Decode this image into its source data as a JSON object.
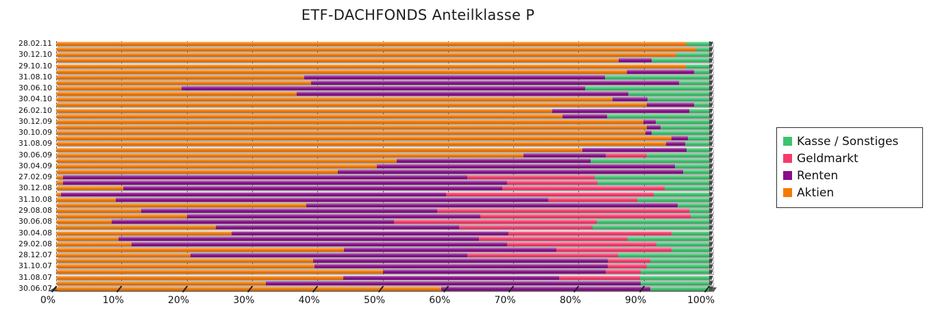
{
  "title": "ETF-DACHFONDS Anteilklasse P",
  "legend": {
    "items": [
      {
        "label": "Kasse / Sonstiges",
        "color": "#3cc46d"
      },
      {
        "label": "Geldmarkt",
        "color": "#f8396b"
      },
      {
        "label": "Renten",
        "color": "#880c88"
      },
      {
        "label": "Aktien",
        "color": "#f57900"
      }
    ]
  },
  "chart_data": {
    "type": "bar",
    "variant": "stacked-horizontal-3d",
    "title": "ETF-DACHFONDS Anteilklasse P",
    "xlabel": "",
    "ylabel": "",
    "xlim": [
      0,
      100
    ],
    "grid": "vertical-dashed",
    "legend_position": "right",
    "x_ticks": [
      "0%",
      "10%",
      "20%",
      "30%",
      "40%",
      "50%",
      "60%",
      "70%",
      "80%",
      "90%",
      "100%"
    ],
    "series_order": [
      "Aktien",
      "Renten",
      "Geldmarkt",
      "Kasse / Sonstiges"
    ],
    "colors": {
      "Aktien": "#f57900",
      "Renten": "#880c88",
      "Geldmarkt": "#f8396b",
      "Kasse / Sonstiges": "#3cc46d"
    },
    "note": "rows listed top to bottom; v = [Aktien, Renten, Geldmarkt, Kasse/Sonstiges] in percent; unlabeled rows are intermediate months without a printed axis label",
    "rows": [
      {
        "label": "28.02.11",
        "v": [
          96.5,
          0,
          0,
          3.5
        ]
      },
      {
        "label": "",
        "v": [
          98.0,
          0,
          0,
          2.0
        ]
      },
      {
        "label": "30.12.10",
        "v": [
          95.0,
          0,
          0,
          5.0
        ]
      },
      {
        "label": "",
        "v": [
          86.2,
          5.0,
          0,
          8.8
        ]
      },
      {
        "label": "29.10.10",
        "v": [
          96.4,
          0,
          0,
          3.6
        ]
      },
      {
        "label": "",
        "v": [
          87.4,
          10.3,
          0,
          2.3
        ]
      },
      {
        "label": "31.08.10",
        "v": [
          38.0,
          46.0,
          0,
          16.0
        ]
      },
      {
        "label": "",
        "v": [
          39.0,
          56.4,
          0,
          4.6
        ]
      },
      {
        "label": "30.06.10",
        "v": [
          19.2,
          61.8,
          0,
          19.0
        ]
      },
      {
        "label": "",
        "v": [
          36.8,
          50.8,
          0,
          12.4
        ]
      },
      {
        "label": "30.04.10",
        "v": [
          85.2,
          5.4,
          0,
          9.4
        ]
      },
      {
        "label": "",
        "v": [
          90.5,
          7.2,
          0,
          2.3
        ]
      },
      {
        "label": "26.02.10",
        "v": [
          76.0,
          21.0,
          0,
          3.0
        ]
      },
      {
        "label": "",
        "v": [
          77.5,
          6.9,
          0,
          15.6
        ]
      },
      {
        "label": "30.12.09",
        "v": [
          89.9,
          1.9,
          0,
          8.2
        ]
      },
      {
        "label": "",
        "v": [
          90.5,
          2.0,
          0,
          7.5
        ]
      },
      {
        "label": "30.10.09",
        "v": [
          90.2,
          1.0,
          0,
          8.8
        ]
      },
      {
        "label": "",
        "v": [
          94.2,
          2.6,
          0,
          3.2
        ]
      },
      {
        "label": "31.08.09",
        "v": [
          93.4,
          2.9,
          0,
          3.7
        ]
      },
      {
        "label": "",
        "v": [
          80.6,
          15.9,
          0,
          3.5
        ]
      },
      {
        "label": "30.06.09",
        "v": [
          71.6,
          12.6,
          6.3,
          9.5
        ]
      },
      {
        "label": "",
        "v": [
          52.1,
          29.8,
          0,
          18.1
        ]
      },
      {
        "label": "30.04.09",
        "v": [
          49.1,
          45.7,
          0,
          5.2
        ]
      },
      {
        "label": "",
        "v": [
          43.1,
          52.9,
          0,
          4.0
        ]
      },
      {
        "label": "27.02.09",
        "v": [
          1.0,
          62.0,
          19.5,
          17.5
        ]
      },
      {
        "label": "",
        "v": [
          1.0,
          68.0,
          13.9,
          17.1
        ]
      },
      {
        "label": "30.12.08",
        "v": [
          10.3,
          58.0,
          24.9,
          6.8
        ]
      },
      {
        "label": "",
        "v": [
          0.7,
          59.0,
          31.8,
          8.5
        ]
      },
      {
        "label": "31.10.08",
        "v": [
          9.1,
          66.2,
          13.7,
          11.0
        ]
      },
      {
        "label": "",
        "v": [
          38.3,
          56.9,
          0,
          4.8
        ]
      },
      {
        "label": "29.08.08",
        "v": [
          13.0,
          45.3,
          38.7,
          3.0
        ]
      },
      {
        "label": "",
        "v": [
          20.0,
          45.0,
          32.2,
          2.8
        ]
      },
      {
        "label": "30.06.08",
        "v": [
          8.5,
          43.2,
          31.1,
          17.2
        ]
      },
      {
        "label": "",
        "v": [
          24.5,
          37.2,
          20.5,
          17.8
        ]
      },
      {
        "label": "30.04.08",
        "v": [
          26.9,
          42.4,
          24.9,
          5.8
        ]
      },
      {
        "label": "",
        "v": [
          9.5,
          55.2,
          22.8,
          12.5
        ]
      },
      {
        "label": "29.02.08",
        "v": [
          11.5,
          57.5,
          22.9,
          8.1
        ]
      },
      {
        "label": "",
        "v": [
          44.1,
          32.5,
          17.6,
          5.8
        ]
      },
      {
        "label": "28.12.07",
        "v": [
          20.6,
          42.4,
          23.0,
          14.0
        ]
      },
      {
        "label": "",
        "v": [
          39.3,
          45.2,
          6.5,
          9.0
        ]
      },
      {
        "label": "31.10.07",
        "v": [
          39.6,
          44.9,
          6.0,
          9.5
        ]
      },
      {
        "label": "",
        "v": [
          50.1,
          34.1,
          5.3,
          10.5
        ]
      },
      {
        "label": "31.08.07",
        "v": [
          44.0,
          33.0,
          12.4,
          10.6
        ]
      },
      {
        "label": "",
        "v": [
          32.1,
          57.4,
          0,
          10.5
        ]
      },
      {
        "label": "30.06.07",
        "v": [
          59.0,
          32.0,
          0,
          9.0
        ]
      }
    ]
  }
}
